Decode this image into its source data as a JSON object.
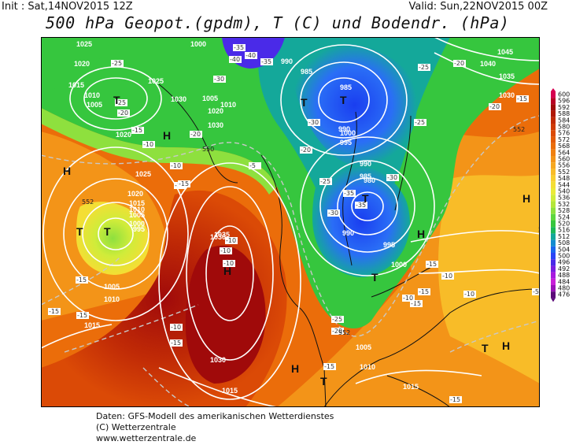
{
  "header": {
    "init": "Init : Sat,14NOV2015 12Z",
    "valid": "Valid: Sun,22NOV2015 00Z",
    "title": "500 hPa Geopot.(gpdm), T (C) und Bodendr. (hPa)"
  },
  "legend": {
    "labels": [
      "600",
      "596",
      "592",
      "588",
      "584",
      "580",
      "576",
      "572",
      "568",
      "564",
      "560",
      "556",
      "552",
      "548",
      "544",
      "540",
      "536",
      "532",
      "528",
      "524",
      "520",
      "516",
      "512",
      "508",
      "504",
      "500",
      "496",
      "492",
      "488",
      "484",
      "480",
      "476"
    ],
    "colors": [
      "#d6004f",
      "#b80024",
      "#a00a0a",
      "#b01806",
      "#c02a06",
      "#cf3a06",
      "#db4a06",
      "#e35a08",
      "#eb6d0a",
      "#f08010",
      "#f39418",
      "#f6a820",
      "#f8bc28",
      "#f8cf30",
      "#f4de34",
      "#eaea38",
      "#d0ec3a",
      "#b4e63a",
      "#8ee03e",
      "#5ed63e",
      "#36c63e",
      "#1cb858",
      "#14a89a",
      "#148cd0",
      "#1a66ee",
      "#2a44f6",
      "#4a2ae8",
      "#7a1ee0",
      "#a81ae0",
      "#c81ed8",
      "#9a12b8",
      "#5c0a7a"
    ]
  },
  "map": {
    "pressure_labels": [
      "1025",
      "1000",
      "990",
      "1020",
      "1015",
      "1010",
      "1005",
      "1025",
      "1030",
      "1005",
      "1010",
      "1020",
      "1030",
      "985",
      "985",
      "990",
      "1000",
      "995",
      "990",
      "1045",
      "1040",
      "1035",
      "1030",
      "1020",
      "1025",
      "1020",
      "1015",
      "1010",
      "1005",
      "1000",
      "995",
      "985",
      "980",
      "990",
      "995",
      "1000",
      "1030",
      "1035",
      "1005",
      "1010",
      "1015",
      "1030",
      "1015",
      "1005",
      "1010",
      "1015"
    ],
    "temp_labels": [
      "-40",
      "-35",
      "-30",
      "-25",
      "-20",
      "-15",
      "-10",
      "-5",
      "-40",
      "-35",
      "-30",
      "-25",
      "-20",
      "-15",
      "-25",
      "-20",
      "-15",
      "-10",
      "-15",
      "-10",
      "-10",
      "-10",
      "-15",
      "-15",
      "-15",
      "-20",
      "-25",
      "-30",
      "-35",
      "-35",
      "-30",
      "-25",
      "-20",
      "-15",
      "-15",
      "-15",
      "-10",
      "-15",
      "-10",
      "-5",
      "-10",
      "-25",
      "-20",
      "-15",
      "-15",
      "-10"
    ],
    "geopot_labels": [
      "552",
      "550",
      "552",
      "552",
      "552"
    ],
    "high_symbol": "H",
    "low_symbol": "T"
  },
  "footer": {
    "line1": "Daten: GFS-Modell des amerikanischen Wetterdienstes",
    "line2": "(C) Wetterzentrale",
    "line3": "www.wetterzentrale.de"
  }
}
